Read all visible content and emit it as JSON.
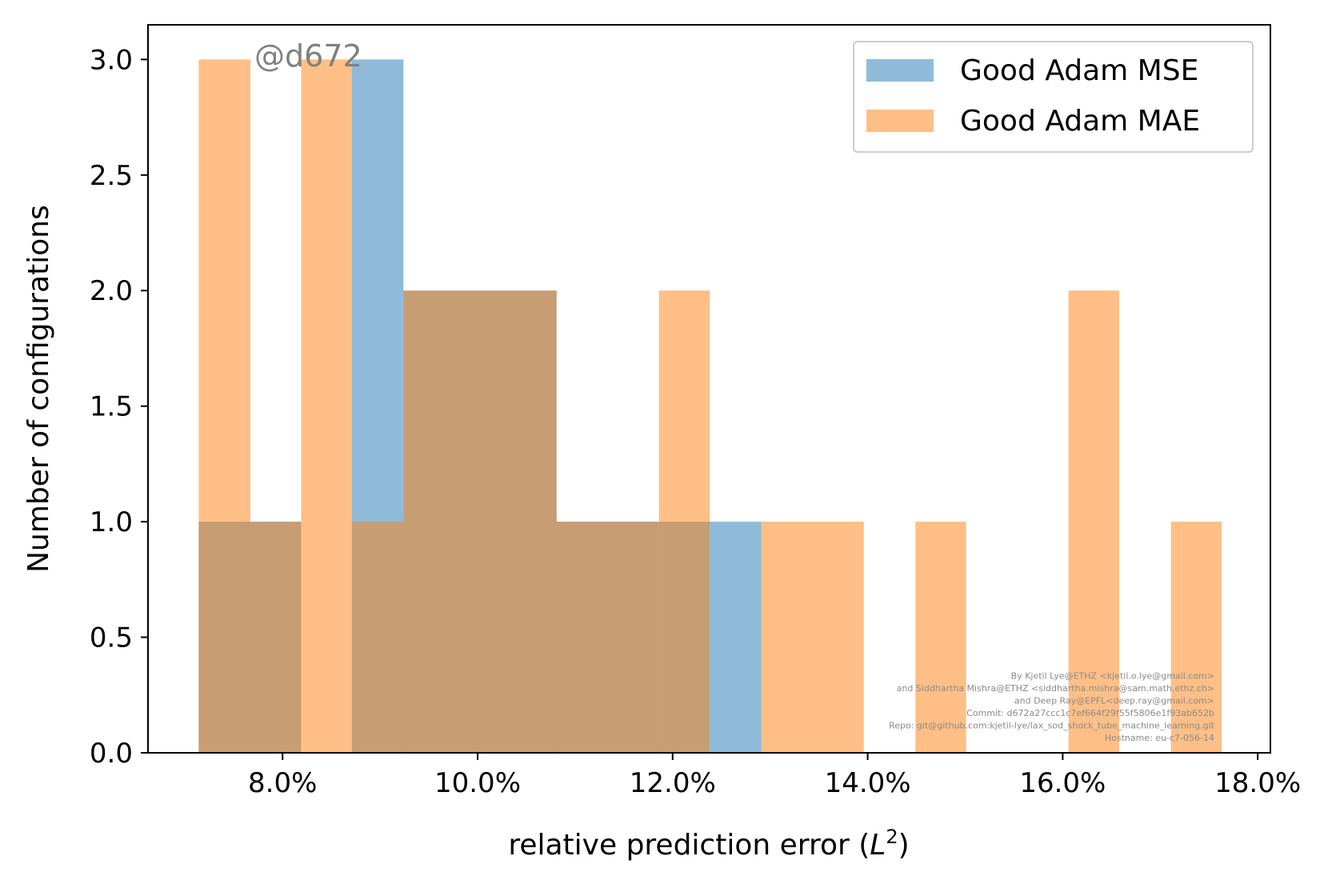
{
  "chart_data": {
    "type": "histogram",
    "title": "",
    "xlabel": "relative prediction error (",
    "xlabel_math_base": "L",
    "xlabel_math_sup": "2",
    "xlabel_suffix": ")",
    "ylabel": "Number of configurations",
    "xlim": [
      0.0662,
      0.1813
    ],
    "ylim": [
      0,
      3.15
    ],
    "x_ticks": [
      0.08,
      0.1,
      0.12,
      0.14,
      0.16,
      0.18
    ],
    "x_tick_labels": [
      "8.0%",
      "10.0%",
      "12.0%",
      "14.0%",
      "16.0%",
      "18.0%"
    ],
    "y_ticks": [
      0,
      0.5,
      1,
      1.5,
      2,
      2.5,
      3
    ],
    "y_tick_labels": [
      "0.0",
      "0.5",
      "1.0",
      "1.5",
      "2.0",
      "2.5",
      "3.0"
    ],
    "legend_position": "top-right",
    "series": [
      {
        "name": "Good Adam MSE",
        "color": "#1f77b4",
        "alpha": 0.5,
        "bins": [
          {
            "x0": 0.0714,
            "x1": 0.0819,
            "count": 1
          },
          {
            "x0": 0.0871,
            "x1": 0.0924,
            "count": 3
          },
          {
            "x0": 0.0924,
            "x1": 0.1081,
            "count": 2
          },
          {
            "x0": 0.1081,
            "x1": 0.1186,
            "count": 1
          },
          {
            "x0": 0.1186,
            "x1": 0.1291,
            "count": 1
          }
        ]
      },
      {
        "name": "Good Adam MAE",
        "color": "#ff7f0e",
        "alpha": 0.5,
        "bins": [
          {
            "x0": 0.0714,
            "x1": 0.0767,
            "count": 3
          },
          {
            "x0": 0.0767,
            "x1": 0.0819,
            "count": 1
          },
          {
            "x0": 0.0819,
            "x1": 0.0871,
            "count": 3
          },
          {
            "x0": 0.0871,
            "x1": 0.0924,
            "count": 1
          },
          {
            "x0": 0.0924,
            "x1": 0.1029,
            "count": 2
          },
          {
            "x0": 0.1029,
            "x1": 0.1081,
            "count": 2
          },
          {
            "x0": 0.1081,
            "x1": 0.1186,
            "count": 1
          },
          {
            "x0": 0.1186,
            "x1": 0.1238,
            "count": 2
          },
          {
            "x0": 0.1291,
            "x1": 0.1396,
            "count": 1
          },
          {
            "x0": 0.1449,
            "x1": 0.1501,
            "count": 1
          },
          {
            "x0": 0.1606,
            "x1": 0.1658,
            "count": 2
          },
          {
            "x0": 0.1711,
            "x1": 0.1763,
            "count": 1
          }
        ]
      }
    ],
    "annotations": {
      "tag": "@d672",
      "credits": [
        "By Kjetil Lye@ETHZ <kjetil.o.lye@gmail.com>",
        "and Siddhartha Mishra@ETHZ <siddhartha.mishra@sam.math.ethz.ch>",
        "and Deep Ray@EPFL<deep.ray@gmail.com>",
        "Commit: d672a27ccc1c7ef664f29f55f5806e1f93ab652b",
        "Repo: git@github.com:kjetil-lye/lax_sod_shock_tube_machine_learning.git",
        "Hostname: eu-c7-056-14"
      ]
    }
  }
}
